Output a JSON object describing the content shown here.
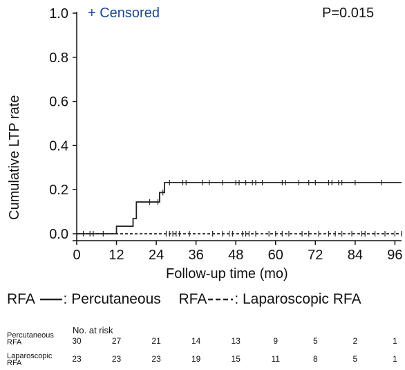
{
  "chart_data": {
    "type": "line",
    "chart_kind": "kaplan-meier cumulative incidence",
    "ylabel": "Cumulative LTP rate",
    "xlabel": "Follow-up time (mo)",
    "xlim": [
      0,
      98
    ],
    "ylim": [
      0,
      1.0
    ],
    "x_ticks": [
      "0",
      "12",
      "24",
      "36",
      "48",
      "60",
      "72",
      "84",
      "96"
    ],
    "y_ticks": [
      "0.0",
      "0.2",
      "0.4",
      "0.6",
      "0.8",
      "1.0"
    ],
    "censored_label": "+ Censored",
    "p_value": "P=0.015",
    "series": [
      {
        "name": "Percutaneous RFA",
        "style": "solid",
        "color": "#222222",
        "steps": [
          [
            0,
            0
          ],
          [
            12,
            0.034
          ],
          [
            17,
            0.069
          ],
          [
            18,
            0.144
          ],
          [
            25,
            0.187
          ],
          [
            26.5,
            0.232
          ],
          [
            98,
            0.232
          ]
        ],
        "censored_x": [
          4,
          5,
          8,
          22,
          24.5,
          26,
          28,
          32,
          33,
          38,
          40,
          44,
          48,
          49,
          51,
          53,
          54,
          56,
          62,
          63,
          67,
          70,
          72,
          76,
          77,
          79,
          80,
          84,
          92
        ]
      },
      {
        "name": "Laparoscopic RFA",
        "style": "dashed",
        "color": "#222222",
        "steps": [
          [
            0,
            0
          ],
          [
            98,
            0
          ]
        ],
        "censored_x": [
          2,
          27,
          28,
          29,
          30,
          31,
          34,
          41,
          44,
          46,
          47,
          50,
          51,
          52,
          54,
          58,
          60,
          62,
          64,
          68,
          70,
          73,
          76,
          78,
          80,
          83,
          86,
          87,
          90,
          93,
          96,
          98
        ]
      }
    ],
    "legend": {
      "solid_label_prefix": "RFA",
      "solid_label": ": Percutaneous",
      "dashed_label_prefix": "RFA",
      "dashed_label": ": Laparoscopic RFA"
    },
    "risk_table": {
      "header": "No. at risk",
      "rows": [
        {
          "name": "Percutaneous RFA",
          "name_line1": "Percutaneous",
          "name_line2": "RFA",
          "values": [
            "30",
            "27",
            "21",
            "14",
            "13",
            "9",
            "5",
            "2",
            "1"
          ]
        },
        {
          "name": "Laparoscopic RFA",
          "name_line1": "Laparoscopic",
          "name_line2": "RFA",
          "values": [
            "23",
            "23",
            "23",
            "19",
            "15",
            "11",
            "8",
            "5",
            "1"
          ]
        }
      ]
    },
    "colors": {
      "censored_marker_label": "#1a4a8a",
      "lines": "#222222"
    }
  }
}
